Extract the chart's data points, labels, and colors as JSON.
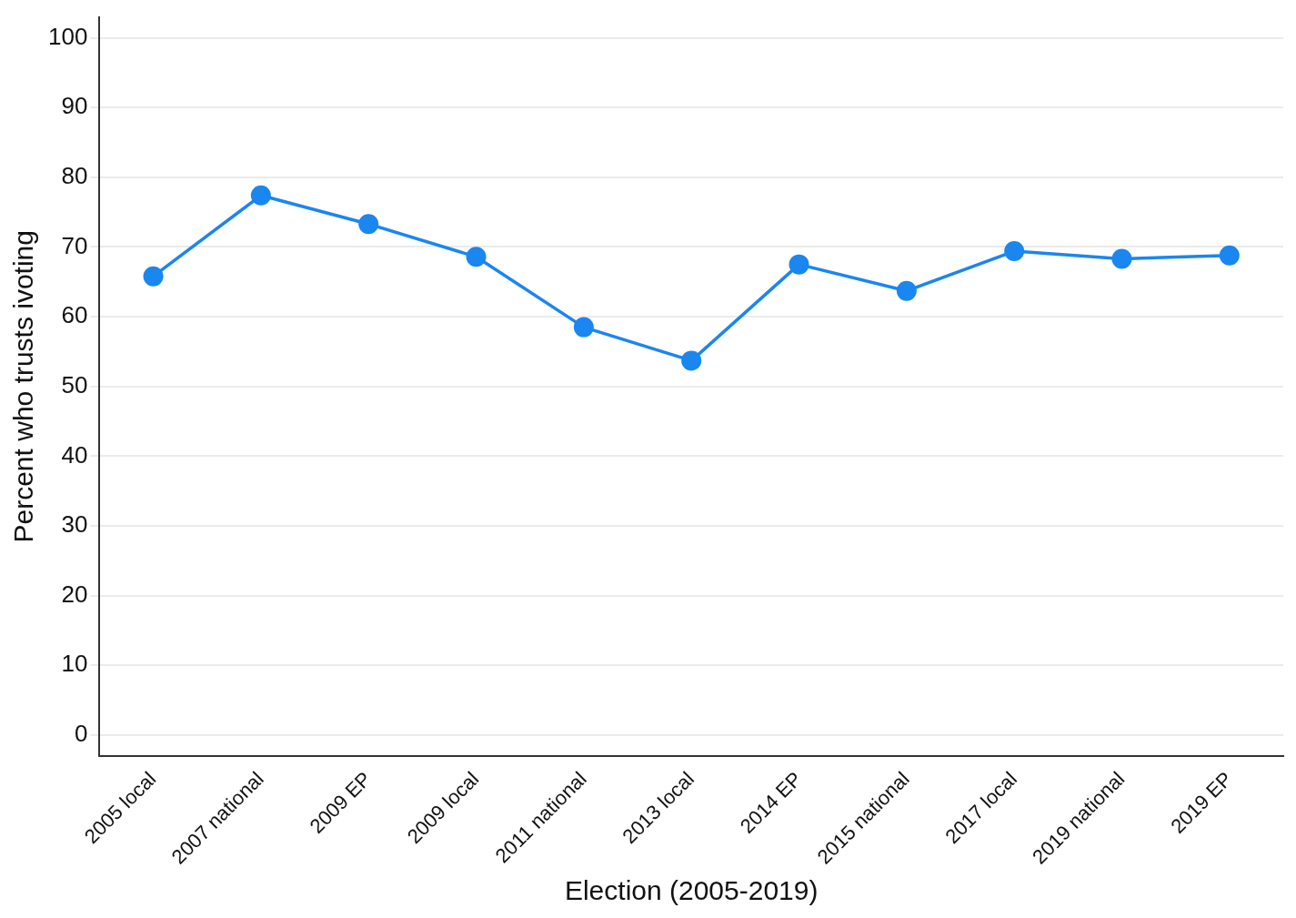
{
  "chart_data": {
    "type": "line",
    "xlabel": "Election (2005-2019)",
    "ylabel": "Percent who trusts ivoting",
    "categories": [
      "2005 local",
      "2007 national",
      "2009 EP",
      "2009 local",
      "2011 national",
      "2013 local",
      "2014 EP",
      "2015 national",
      "2017 local",
      "2019 national",
      "2019 EP"
    ],
    "series": [
      {
        "color": "#1a86f0",
        "values": [
          65.8,
          77.4,
          73.3,
          68.6,
          58.5,
          53.7,
          67.5,
          63.7,
          69.4,
          68.3,
          68.8
        ]
      }
    ],
    "ylim": [
      -3,
      103
    ],
    "yticks": [
      0,
      10,
      20,
      30,
      40,
      50,
      60,
      70,
      80,
      90,
      100
    ],
    "grid": "y",
    "legend": false,
    "marker": "circle",
    "line_style": "solid"
  }
}
